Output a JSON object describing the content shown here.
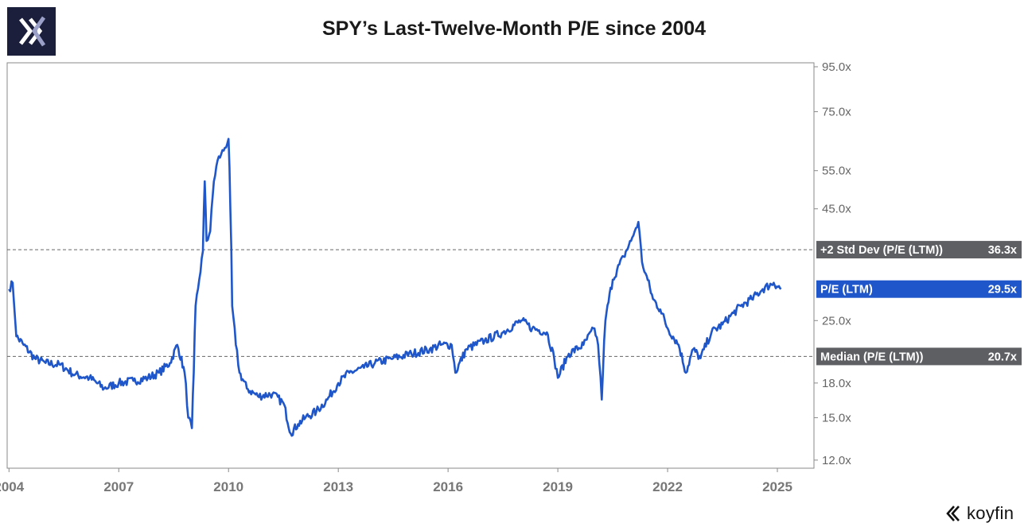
{
  "header": {
    "logo_icon": "koyfin-k-logo-icon",
    "title": "SPY’s Last-Twelve-Month P/E since 2004"
  },
  "brand": {
    "name": "koyfin",
    "icon": "koyfin-chevron-icon"
  },
  "colors": {
    "series": "#1f56c9",
    "label_dark": "#5d5f63",
    "label_blue": "#1f56c9",
    "grid_dashed": "#666666",
    "logo_bg": "#1b1f3b"
  },
  "chart_data": {
    "type": "line",
    "title": "SPY’s Last-Twelve-Month P/E since 2004",
    "xlabel": "",
    "ylabel": "",
    "y_scale": "log",
    "ylim": [
      11.5,
      97
    ],
    "xlim": [
      2003.95,
      2026
    ],
    "x_tick_labels": [
      "2004",
      "2007",
      "2010",
      "2013",
      "2016",
      "2019",
      "2022",
      "2025"
    ],
    "x_tick_values": [
      2004,
      2007,
      2010,
      2013,
      2016,
      2019,
      2022,
      2025
    ],
    "y_tick_labels": [
      "95.0x",
      "75.0x",
      "55.0x",
      "45.0x",
      "25.0x",
      "18.0x",
      "15.0x",
      "12.0x"
    ],
    "y_tick_values": [
      95,
      75,
      55,
      45,
      25,
      18,
      15,
      12
    ],
    "reference_lines": [
      {
        "name": "+2 Std Dev (P/E (LTM))",
        "value": 36.3,
        "label": "36.3x",
        "style": "dashed"
      },
      {
        "name": "Median (P/E (LTM))",
        "value": 20.7,
        "label": "20.7x",
        "style": "dashed"
      }
    ],
    "current_value": {
      "name": "P/E (LTM)",
      "value": 29.5,
      "label": "29.5x"
    },
    "series": [
      {
        "name": "P/E (LTM)",
        "x": [
          2004.0,
          2004.1,
          2004.2,
          2004.4,
          2004.7,
          2005.0,
          2005.4,
          2005.8,
          2006.2,
          2006.6,
          2007.0,
          2007.4,
          2007.8,
          2008.1,
          2008.4,
          2008.6,
          2008.8,
          2008.9,
          2009.0,
          2009.05,
          2009.1,
          2009.2,
          2009.3,
          2009.35,
          2009.4,
          2009.5,
          2009.6,
          2009.7,
          2009.8,
          2009.9,
          2010.0,
          2010.05,
          2010.1,
          2010.2,
          2010.3,
          2010.5,
          2010.8,
          2011.2,
          2011.5,
          2011.7,
          2011.9,
          2012.1,
          2012.4,
          2012.7,
          2013.0,
          2013.3,
          2013.7,
          2014.0,
          2014.5,
          2015.0,
          2015.5,
          2015.8,
          2016.1,
          2016.2,
          2016.5,
          2017.0,
          2017.5,
          2018.0,
          2018.3,
          2018.7,
          2018.9,
          2019.0,
          2019.3,
          2019.7,
          2020.0,
          2020.1,
          2020.2,
          2020.3,
          2020.5,
          2020.8,
          2021.0,
          2021.1,
          2021.2,
          2021.3,
          2021.4,
          2021.6,
          2021.8,
          2022.0,
          2022.3,
          2022.5,
          2022.7,
          2022.9,
          2023.2,
          2023.5,
          2023.8,
          2024.0,
          2024.3,
          2024.6,
          2024.9,
          2025.1
        ],
        "values": [
          29.5,
          30.5,
          23.0,
          22.0,
          20.5,
          20.0,
          19.8,
          18.8,
          18.5,
          17.5,
          18.0,
          18.2,
          18.5,
          19.0,
          20.0,
          22.0,
          19.0,
          15.0,
          14.2,
          19.0,
          27.0,
          31.0,
          36.0,
          52.0,
          38.0,
          40.0,
          52.0,
          58.0,
          60.0,
          62.0,
          65.0,
          45.0,
          27.0,
          22.0,
          19.0,
          17.5,
          16.8,
          17.0,
          16.2,
          13.8,
          14.5,
          15.0,
          15.5,
          16.5,
          18.0,
          19.0,
          19.5,
          20.0,
          20.5,
          21.0,
          21.5,
          22.0,
          22.0,
          19.0,
          21.5,
          22.5,
          23.5,
          25.0,
          24.0,
          23.5,
          20.5,
          18.5,
          21.0,
          22.0,
          24.0,
          22.0,
          16.5,
          25.0,
          31.0,
          35.0,
          38.0,
          40.0,
          42.0,
          34.0,
          32.0,
          28.0,
          26.5,
          24.0,
          22.0,
          19.0,
          21.5,
          20.5,
          23.5,
          24.5,
          26.0,
          27.0,
          28.0,
          29.5,
          30.5,
          29.5
        ]
      }
    ]
  }
}
